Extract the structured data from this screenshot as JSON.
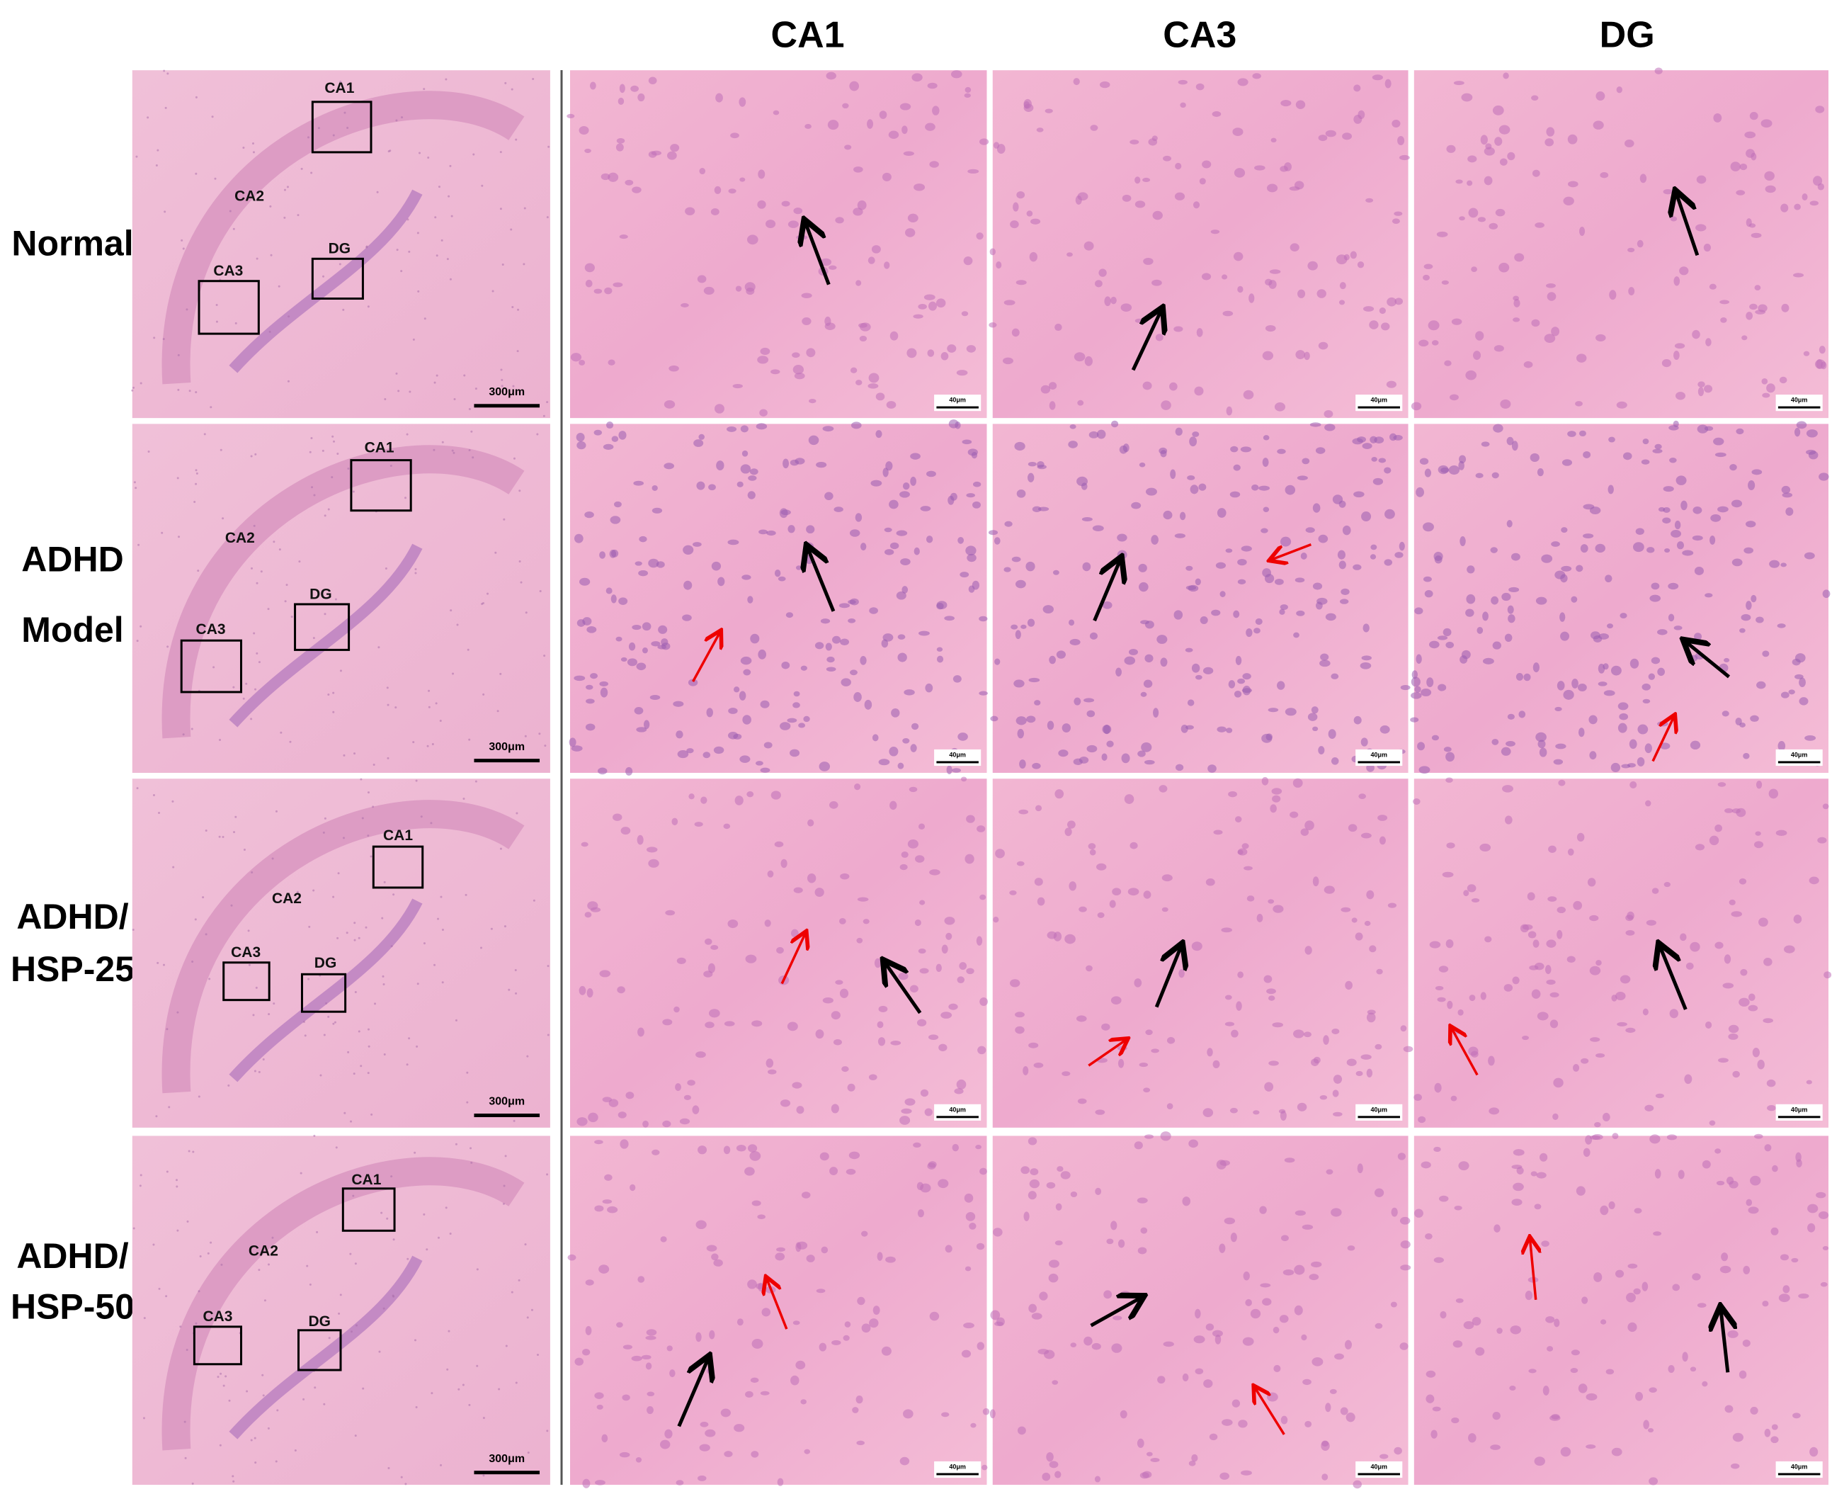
{
  "column_headers": [
    "CA1",
    "CA3",
    "DG"
  ],
  "rows": [
    {
      "label": [
        "Normal"
      ],
      "overview": {
        "regions": [
          "CA1",
          "CA2",
          "CA3",
          "DG"
        ],
        "scale_bar": "300μm"
      },
      "detail_scale_bars": [
        "40μm",
        "40μm",
        "40μm"
      ]
    },
    {
      "label": [
        "ADHD",
        "Model"
      ],
      "overview": {
        "regions": [
          "CA1",
          "CA2",
          "CA3",
          "DG"
        ],
        "scale_bar": "300μm"
      },
      "detail_scale_bars": [
        "40μm",
        "40μm",
        "40μm"
      ]
    },
    {
      "label": [
        "ADHD/",
        "HSP-25"
      ],
      "overview": {
        "regions": [
          "CA1",
          "CA2",
          "CA3",
          "DG"
        ],
        "scale_bar": "300μm"
      },
      "detail_scale_bars": [
        "40μm",
        "40μm",
        "40μm"
      ]
    },
    {
      "label": [
        "ADHD/",
        "HSP-50"
      ],
      "overview": {
        "regions": [
          "CA1",
          "CA2",
          "CA3",
          "DG"
        ],
        "scale_bar": "300μm"
      },
      "detail_scale_bars": [
        "40μm",
        "40μm",
        "40μm"
      ]
    }
  ]
}
